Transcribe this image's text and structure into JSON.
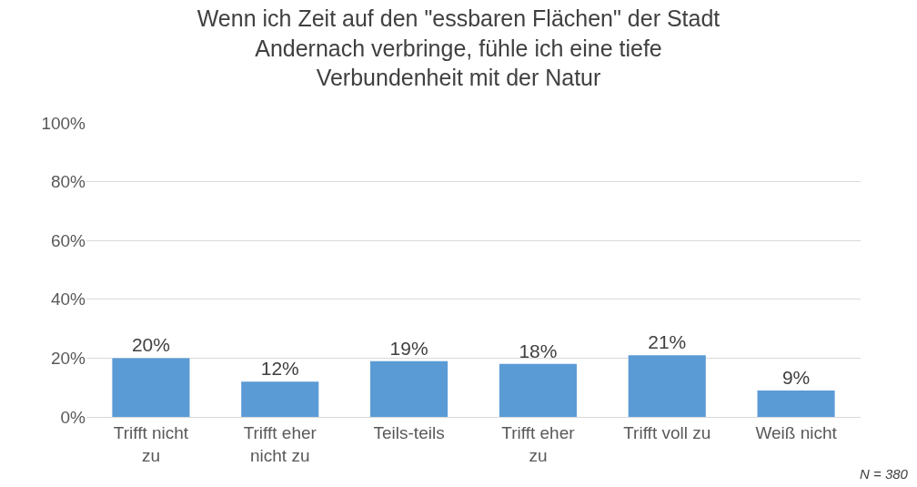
{
  "chart_data": {
    "type": "bar",
    "title": "Wenn ich Zeit auf den \"essbaren Flächen\" der Stadt\nAndernach verbringe, fühle ich eine tiefe\nVerbundenheit mit der Natur",
    "categories": [
      "Trifft nicht\nzu",
      "Trifft eher\nnicht zu",
      "Teils-teils",
      "Trifft eher\nzu",
      "Trifft voll zu",
      "Weiß nicht"
    ],
    "values": [
      20,
      12,
      19,
      18,
      21,
      9
    ],
    "value_labels": [
      "20%",
      "12%",
      "19%",
      "18%",
      "21%",
      "9%"
    ],
    "color": "#5b9bd5",
    "ylim": [
      0,
      100
    ],
    "yticks": [
      {
        "value": 0,
        "label": "0%"
      },
      {
        "value": 20,
        "label": "20%"
      },
      {
        "value": 40,
        "label": "40%"
      },
      {
        "value": 60,
        "label": "60%"
      },
      {
        "value": 80,
        "label": "80%"
      },
      {
        "value": 100,
        "label": "100%"
      }
    ],
    "grid": "y",
    "annotations": [
      "N = 380"
    ]
  }
}
